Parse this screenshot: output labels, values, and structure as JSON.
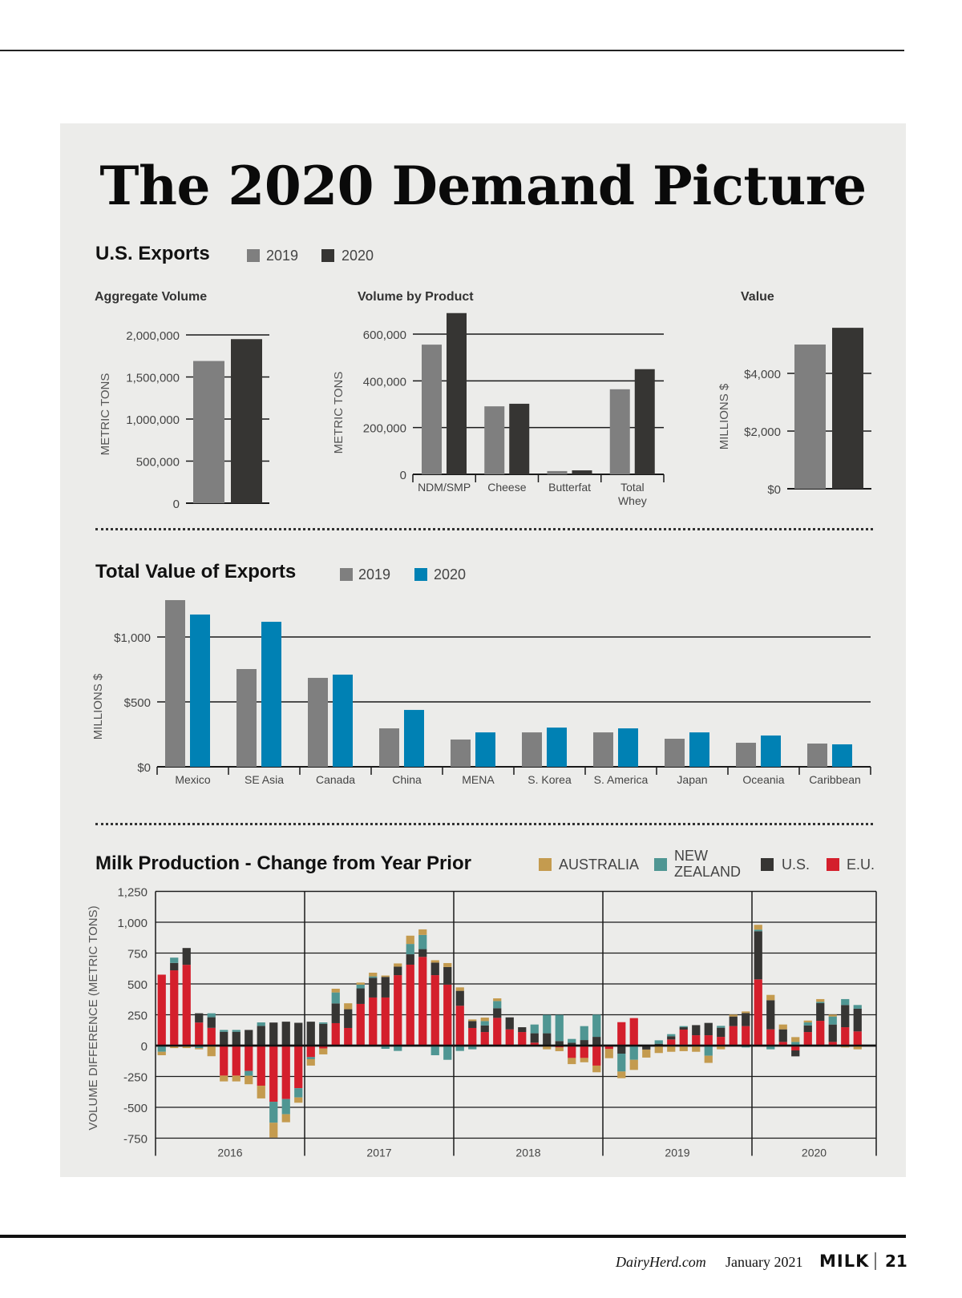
{
  "page": {
    "title": "The 2020 Demand Picture",
    "footer": {
      "site": "DairyHerd.com",
      "date": "January 2021",
      "brand": "MILK",
      "page_number": "21"
    }
  },
  "us_exports": {
    "title": "U.S. Exports",
    "legend": [
      {
        "label": "2019",
        "color": "#7f7f7f"
      },
      {
        "label": "2020",
        "color": "#363533"
      }
    ]
  },
  "total_value": {
    "title": "Total Value of Exports",
    "legend": [
      {
        "label": "2019",
        "color": "#7f7f7f"
      },
      {
        "label": "2020",
        "color": "#0081b4"
      }
    ]
  },
  "milk": {
    "title": "Milk Production - Change from Year Prior",
    "legend": [
      {
        "label": "AUSTRALIA",
        "color": "#c49b4f"
      },
      {
        "label": "NEW",
        "label2": "ZEALAND",
        "color": "#4f9693"
      },
      {
        "label": "U.S.",
        "color": "#363533"
      },
      {
        "label": "E.U.",
        "color": "#d41f2c"
      }
    ]
  },
  "chart_data": [
    {
      "id": "aggregate_volume",
      "type": "bar",
      "title": "Aggregate Volume",
      "ylabel": "METRIC TONS",
      "xlabel": "",
      "ylim": [
        0,
        2000000
      ],
      "yticks": [
        0,
        500000,
        1000000,
        1500000,
        2000000
      ],
      "ytick_labels": [
        "0",
        "500,000",
        "1,000,000",
        "1,500,000",
        "2,000,000"
      ],
      "categories": [
        ""
      ],
      "series": [
        {
          "name": "2019",
          "color": "#7f7f7f",
          "values": [
            1690000
          ]
        },
        {
          "name": "2020",
          "color": "#363533",
          "values": [
            1950000
          ]
        }
      ]
    },
    {
      "id": "volume_by_product",
      "type": "bar",
      "title": "Volume by Product",
      "ylabel": "METRIC TONS",
      "xlabel": "",
      "ylim": [
        0,
        600000
      ],
      "yticks": [
        0,
        200000,
        400000,
        600000
      ],
      "ytick_labels": [
        "0",
        "200,000",
        "400,000",
        "600,000"
      ],
      "categories": [
        "NDM/SMP",
        "Cheese",
        "Butterfat",
        "Total Whey"
      ],
      "series": [
        {
          "name": "2019",
          "color": "#7f7f7f",
          "values": [
            555000,
            291000,
            14000,
            364000
          ]
        },
        {
          "name": "2020",
          "color": "#363533",
          "values": [
            690000,
            302000,
            17000,
            450000
          ]
        }
      ]
    },
    {
      "id": "value",
      "type": "bar",
      "title": "Value",
      "ylabel": "MILLIONS $",
      "xlabel": "",
      "ylim": [
        0,
        4000
      ],
      "yticks": [
        0,
        2000,
        4000
      ],
      "ytick_labels": [
        "$0",
        "$2,000",
        "$4,000"
      ],
      "categories": [
        ""
      ],
      "series": [
        {
          "name": "2019",
          "color": "#7f7f7f",
          "values": [
            5000
          ]
        },
        {
          "name": "2020",
          "color": "#363533",
          "values": [
            5580
          ]
        }
      ]
    },
    {
      "id": "total_value_of_exports",
      "type": "bar",
      "title": "Total Value of Exports",
      "ylabel": "MILLIONS $",
      "xlabel": "",
      "ylim": [
        0,
        1000
      ],
      "yticks": [
        0,
        500,
        1000
      ],
      "ytick_labels": [
        "$0",
        "$500",
        "$1,000"
      ],
      "legend": "top",
      "categories": [
        "Mexico",
        "SE Asia",
        "Canada",
        "China",
        "MENA",
        "S. Korea",
        "S. America",
        "Japan",
        "Oceania",
        "Caribbean"
      ],
      "series": [
        {
          "name": "2019",
          "color": "#7f7f7f",
          "values": [
            1284,
            753,
            685,
            296,
            210,
            265,
            265,
            216,
            185,
            179
          ]
        },
        {
          "name": "2020",
          "color": "#0081b4",
          "values": [
            1173,
            1117,
            710,
            438,
            265,
            302,
            296,
            265,
            241,
            173
          ]
        }
      ]
    },
    {
      "id": "milk_production_change",
      "type": "bar",
      "stacked": true,
      "title": "Milk Production - Change from Year Prior",
      "ylabel": "VOLUME DIFFERENCE (METRIC TONS)",
      "xlabel": "",
      "ylim": [
        -750,
        1250
      ],
      "yticks": [
        -750,
        -500,
        -250,
        0,
        250,
        500,
        750,
        1000,
        1250
      ],
      "ytick_labels": [
        "-750",
        "-500",
        "-250",
        "0",
        "250",
        "500",
        "750",
        "1,000",
        "1,250"
      ],
      "grid": true,
      "legend": "top-right",
      "year_groups": [
        {
          "label": "2016",
          "months": 12
        },
        {
          "label": "2017",
          "months": 12
        },
        {
          "label": "2018",
          "months": 12
        },
        {
          "label": "2019",
          "months": 12
        },
        {
          "label": "2020",
          "months": 10
        }
      ],
      "series": [
        {
          "name": "E.U.",
          "color": "#d41f2c",
          "values": [
            575,
            610,
            655,
            187,
            144,
            -243,
            -243,
            -205,
            -325,
            -455,
            -433,
            -345,
            -93,
            -24,
            182,
            143,
            338,
            390,
            390,
            571,
            656,
            719,
            571,
            494,
            323,
            143,
            110,
            225,
            132,
            110,
            24,
            0,
            -15,
            -100,
            -100,
            -162,
            -28,
            190,
            223,
            0,
            0,
            50,
            130,
            84,
            84,
            71,
            158,
            158,
            537,
            132,
            30,
            -39,
            110,
            201,
            30,
            149,
            115,
            0
          ]
        },
        {
          "name": "U.S.",
          "color": "#363533",
          "values": [
            0,
            60,
            136,
            75,
            86,
            112,
            112,
            127,
            160,
            187,
            194,
            185,
            194,
            177,
            160,
            152,
            126,
            160,
            167,
            69,
            84,
            63,
            102,
            143,
            121,
            56,
            54,
            78,
            97,
            39,
            76,
            100,
            37,
            24,
            45,
            71,
            0,
            -65,
            0,
            -32,
            15,
            26,
            19,
            82,
            100,
            74,
            78,
            106,
            390,
            236,
            102,
            -48,
            54,
            143,
            141,
            180,
            184,
            0
          ]
        },
        {
          "name": "NEW ZEALAND",
          "color": "#4f9693",
          "values": [
            -50,
            43,
            0,
            -20,
            32,
            15,
            15,
            -39,
            28,
            -170,
            -123,
            -75,
            -17,
            11,
            89,
            0,
            30,
            11,
            -26,
            -43,
            84,
            115,
            -78,
            -115,
            -43,
            -30,
            35,
            58,
            0,
            0,
            71,
            149,
            212,
            30,
            113,
            180,
            0,
            -145,
            -115,
            0,
            28,
            17,
            9,
            0,
            -82,
            15,
            0,
            -15,
            13,
            -30,
            0,
            30,
            24,
            11,
            65,
            48,
            30,
            0
          ]
        },
        {
          "name": "AUSTRALIA",
          "color": "#c49b4f",
          "values": [
            -28,
            -20,
            -20,
            -10,
            -86,
            -47,
            -47,
            -69,
            -103,
            -120,
            -65,
            -43,
            -52,
            -47,
            30,
            48,
            17,
            30,
            11,
            26,
            67,
            45,
            19,
            32,
            28,
            13,
            28,
            22,
            0,
            0,
            0,
            -30,
            -30,
            -50,
            -35,
            -54,
            -74,
            -54,
            -82,
            -65,
            -60,
            -50,
            -45,
            -50,
            -58,
            -30,
            15,
            13,
            39,
            43,
            39,
            39,
            15,
            22,
            15,
            -15,
            -30,
            0
          ]
        }
      ]
    }
  ]
}
